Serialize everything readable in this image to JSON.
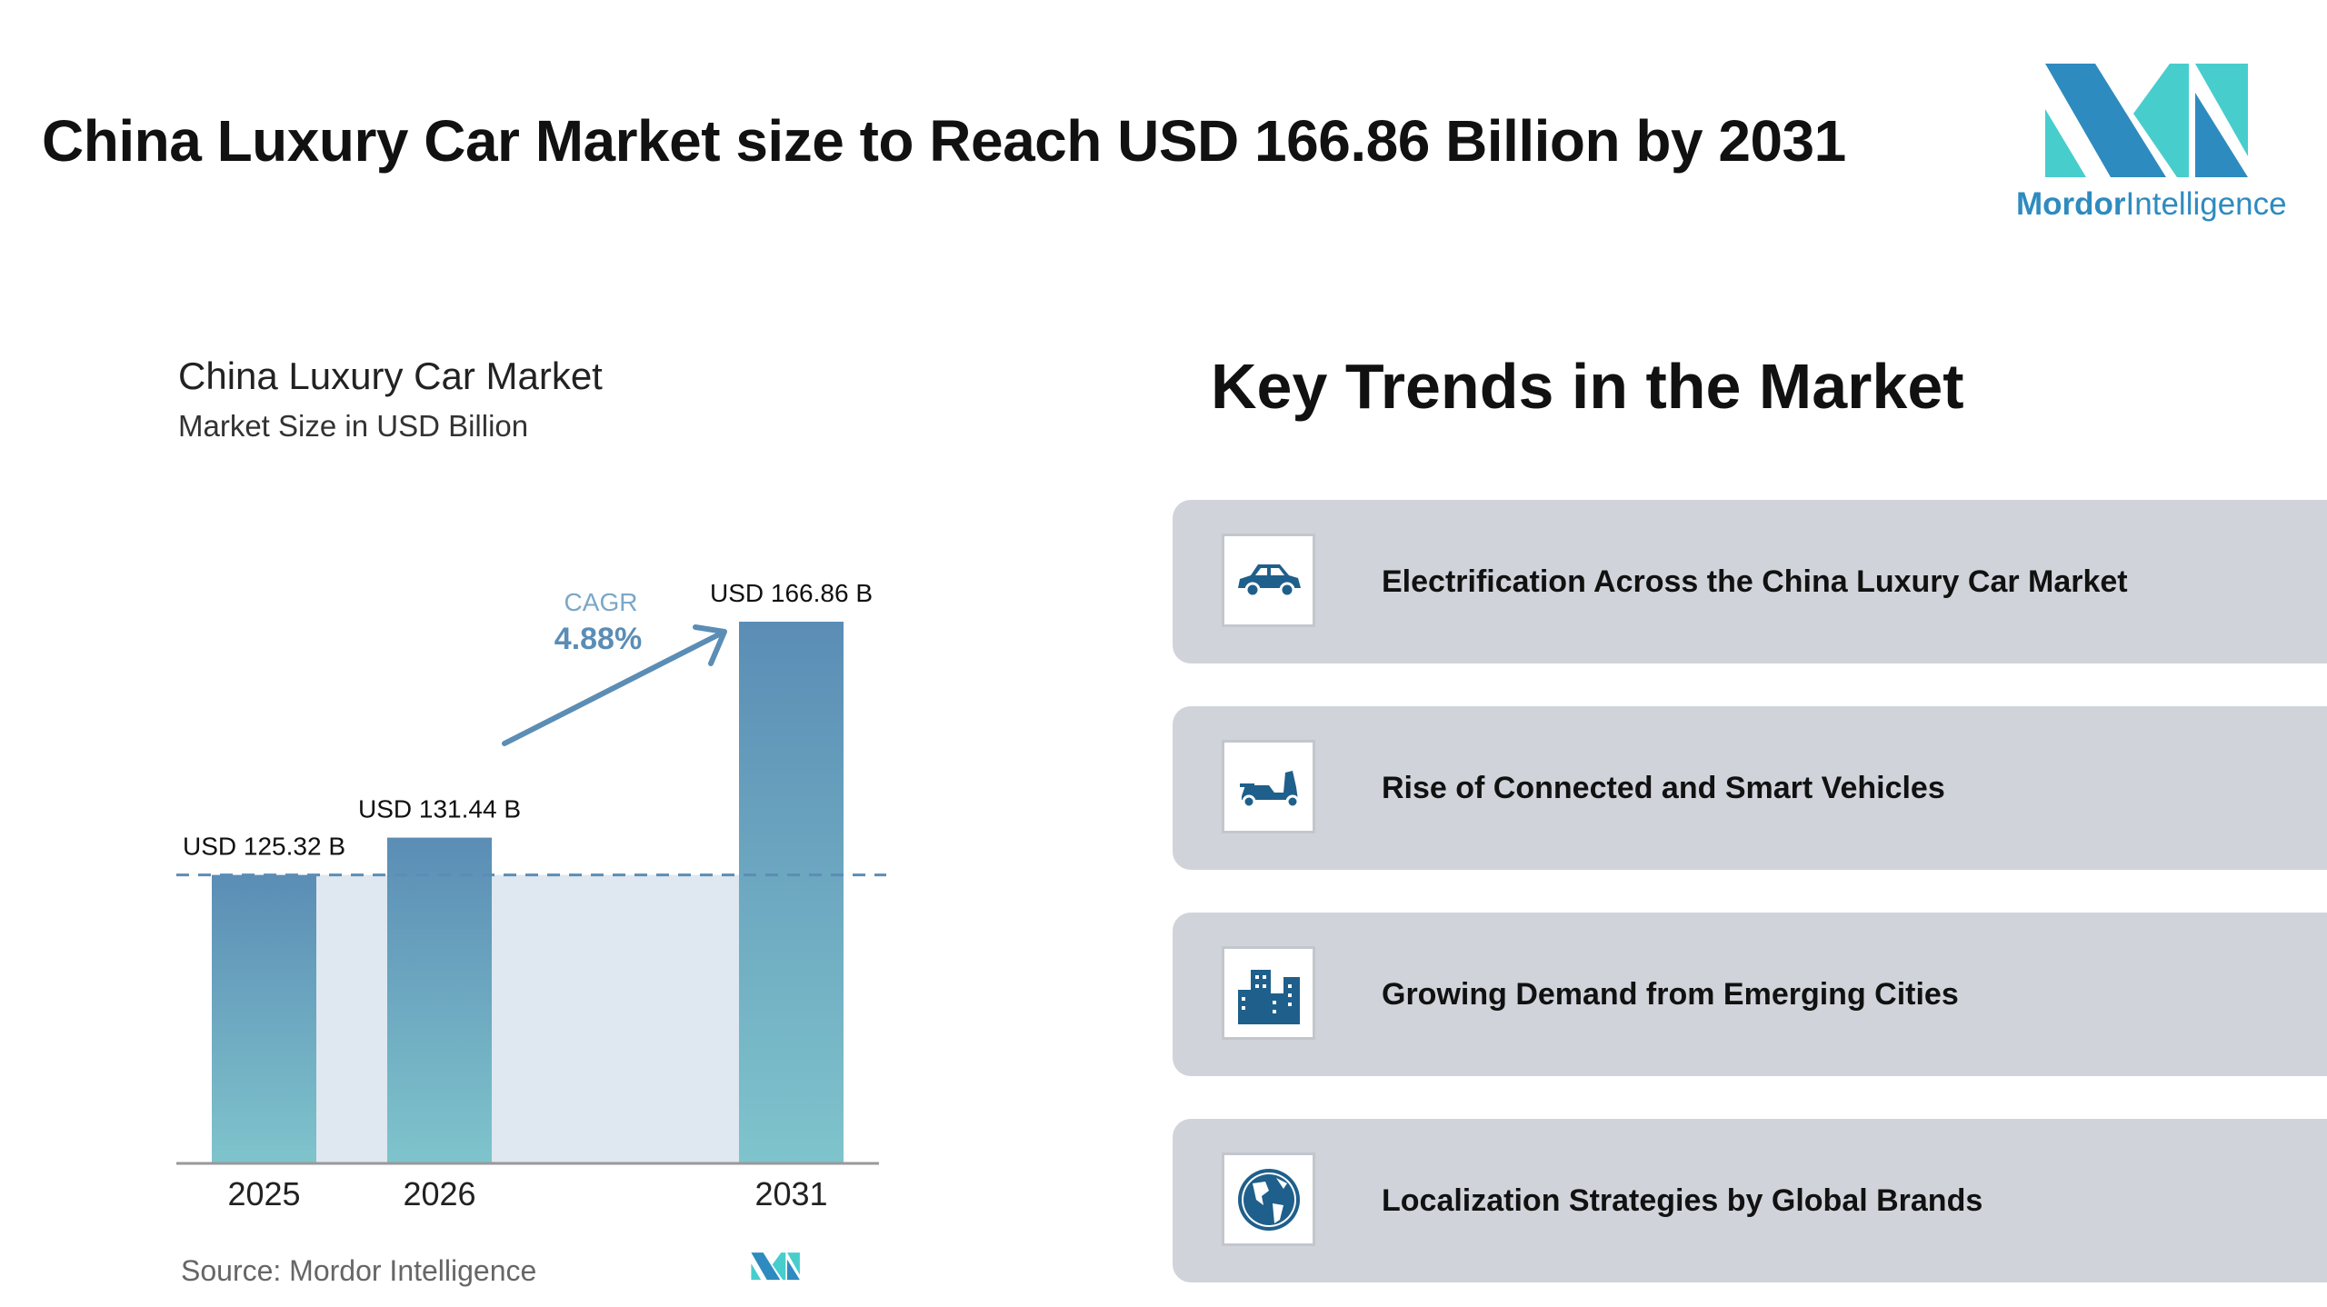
{
  "header": {
    "title": "China Luxury Car Market size to Reach USD 166.86 Billion by 2031"
  },
  "logo": {
    "brand_bold": "Mordor",
    "brand_light": "Intelligence",
    "colors": {
      "dark": "#2e8bbf",
      "light": "#48cdcd"
    }
  },
  "chart_data": {
    "type": "bar",
    "title": "China Luxury Car Market",
    "subtitle": "Market Size in USD Billion",
    "categories": [
      "2025",
      "2026",
      "2031"
    ],
    "values": [
      125.32,
      131.44,
      166.86
    ],
    "data_labels": [
      "USD 125.32 B",
      "USD 131.44 B",
      "USD 166.86 B"
    ],
    "annotation": {
      "label": "CAGR",
      "value": "4.88%"
    },
    "ylim": [
      0,
      170
    ],
    "grid": false,
    "colors": {
      "bar_top": "#5b8db5",
      "bar_bottom": "#7fc4cc",
      "shade": "#dfe8f0",
      "accent": "#5b8db5"
    },
    "source": "Source:  Mordor Intelligence"
  },
  "trends": {
    "title": "Key Trends in the Market",
    "items": [
      {
        "label": "Electrification Across the China Luxury Car Market",
        "icon": "car-icon"
      },
      {
        "label": "Rise of Connected and Smart Vehicles",
        "icon": "scooter-icon"
      },
      {
        "label": "Growing Demand from Emerging Cities",
        "icon": "city-buildings-icon"
      },
      {
        "label": "Localization Strategies by Global Brands",
        "icon": "globe-icon"
      }
    ]
  }
}
